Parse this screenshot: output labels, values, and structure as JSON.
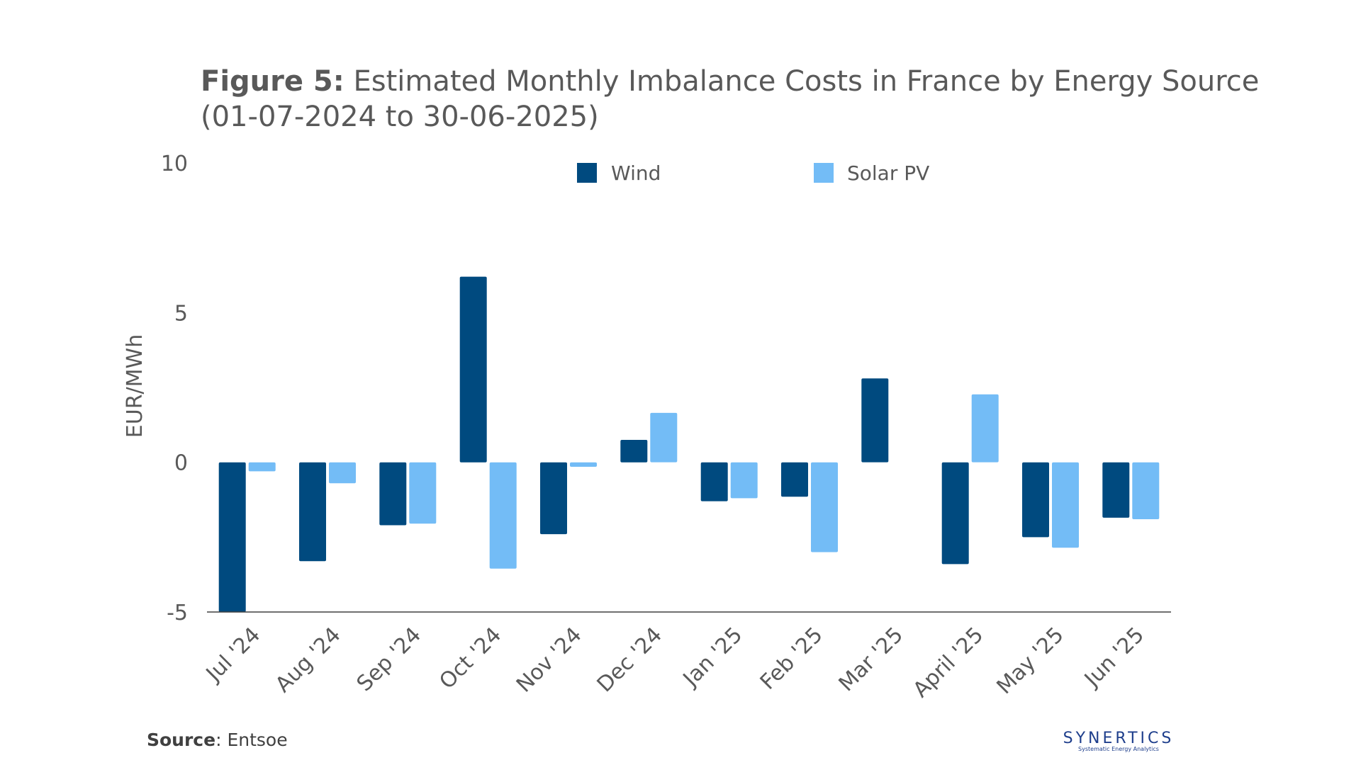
{
  "title": {
    "prefix": "Figure 5:",
    "text": " Estimated Monthly Imbalance Costs in France by Energy Source (01-07-2024 to 30-06-2025)"
  },
  "source": {
    "label": "Source",
    "text": ": Entsoe"
  },
  "logo": {
    "name": "SYNERTICS",
    "tagline": "Systematic Energy Analytics"
  },
  "colors": {
    "wind": "#004a7f",
    "solar": "#73bcf6",
    "axis": "#404040",
    "text": "#595959"
  },
  "chart_data": {
    "type": "bar",
    "title": "Estimated Monthly Imbalance Costs in France by Energy Source (01-07-2024 to 30-06-2025)",
    "xlabel": "",
    "ylabel": "EUR/MWh",
    "ylim": [
      -5,
      10
    ],
    "yticks": [
      "10",
      "5",
      "0",
      "-5"
    ],
    "legend_position": "top-center",
    "grid": false,
    "categories": [
      "Jul '24",
      "Aug '24",
      "Sep '24",
      "Oct '24",
      "Nov '24",
      "Dec '24",
      "Jan '25",
      "Feb '25",
      "Mar '25",
      "April '25",
      "May '25",
      "Jun '25"
    ],
    "series": [
      {
        "name": "Wind",
        "values": [
          -5.0,
          -3.3,
          -2.1,
          6.2,
          -2.4,
          0.75,
          -1.3,
          -1.15,
          2.8,
          -3.4,
          -2.5,
          -1.85
        ]
      },
      {
        "name": "Solar PV",
        "values": [
          -0.3,
          -0.7,
          -2.05,
          -3.55,
          -0.15,
          1.65,
          -1.2,
          -3.0,
          0.0,
          2.27,
          -2.85,
          -1.9
        ]
      }
    ]
  }
}
